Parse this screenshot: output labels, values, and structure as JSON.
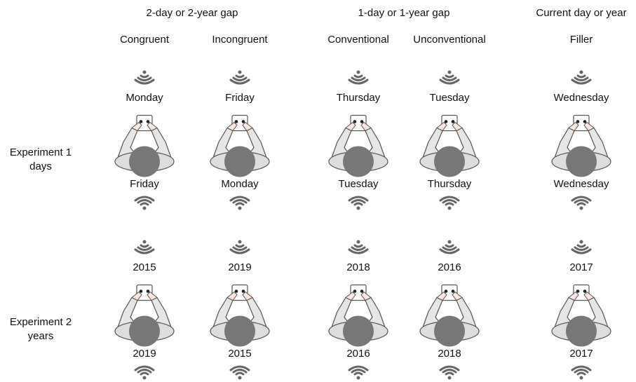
{
  "groups": [
    "2-day or 2-year gap",
    "1-day or 1-year gap",
    "Current day or year"
  ],
  "columns": [
    "Congruent",
    "Incongruent",
    "Conventional",
    "Unconventional",
    "Filler"
  ],
  "experiments": [
    {
      "label": [
        "Experiment 1",
        "days"
      ],
      "top": [
        "Monday",
        "Friday",
        "Thursday",
        "Tuesday",
        "Wednesday"
      ],
      "bottom": [
        "Friday",
        "Monday",
        "Tuesday",
        "Thursday",
        "Wednesday"
      ]
    },
    {
      "label": [
        "Experiment 2",
        "years"
      ],
      "top": [
        "2015",
        "2019",
        "2018",
        "2016",
        "2017"
      ],
      "bottom": [
        "2019",
        "2015",
        "2016",
        "2018",
        "2017"
      ]
    }
  ]
}
